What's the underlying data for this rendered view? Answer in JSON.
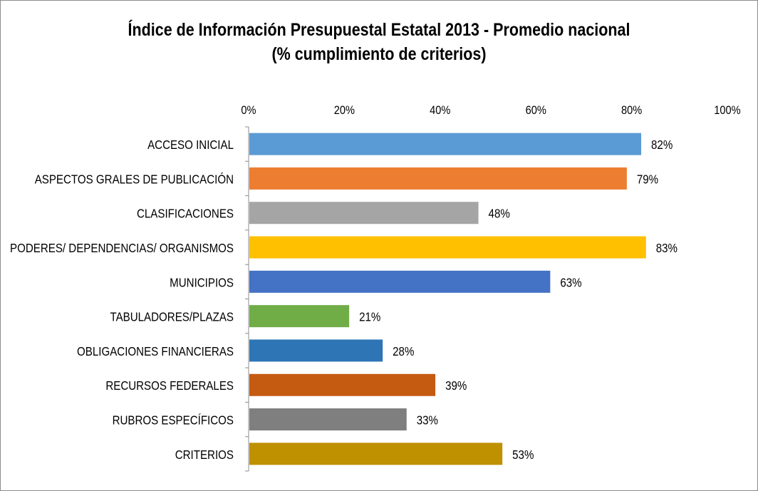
{
  "chart_data": {
    "type": "bar",
    "orientation": "horizontal",
    "title_line1": "Índice de Información Presupuestal Estatal 2013 - Promedio nacional",
    "title_line2": "(% cumplimiento de criterios)",
    "xlabel": "",
    "ylabel": "",
    "xlim": [
      0,
      100
    ],
    "x_ticks": [
      "0%",
      "20%",
      "40%",
      "60%",
      "80%",
      "100%"
    ],
    "x_axis_position": "top",
    "grid": false,
    "legend": "none",
    "categories": [
      "ACCESO INICIAL",
      "ASPECTOS GRALES DE PUBLICACIÓN",
      "CLASIFICACIONES",
      "PODERES/ DEPENDENCIAS/ ORGANISMOS",
      "MUNICIPIOS",
      "TABULADORES/PLAZAS",
      "OBLIGACIONES FINANCIERAS",
      "RECURSOS FEDERALES",
      "RUBROS ESPECÍFICOS",
      "CRITERIOS"
    ],
    "values": [
      82,
      79,
      48,
      83,
      63,
      21,
      28,
      39,
      33,
      53
    ],
    "value_labels": [
      "82%",
      "79%",
      "48%",
      "83%",
      "63%",
      "21%",
      "28%",
      "39%",
      "33%",
      "53%"
    ],
    "colors": [
      "#5b9bd5",
      "#ed7d31",
      "#a5a5a5",
      "#ffc000",
      "#4472c4",
      "#70ad47",
      "#2e75b6",
      "#c55a11",
      "#7f7f7f",
      "#bf9000"
    ]
  }
}
